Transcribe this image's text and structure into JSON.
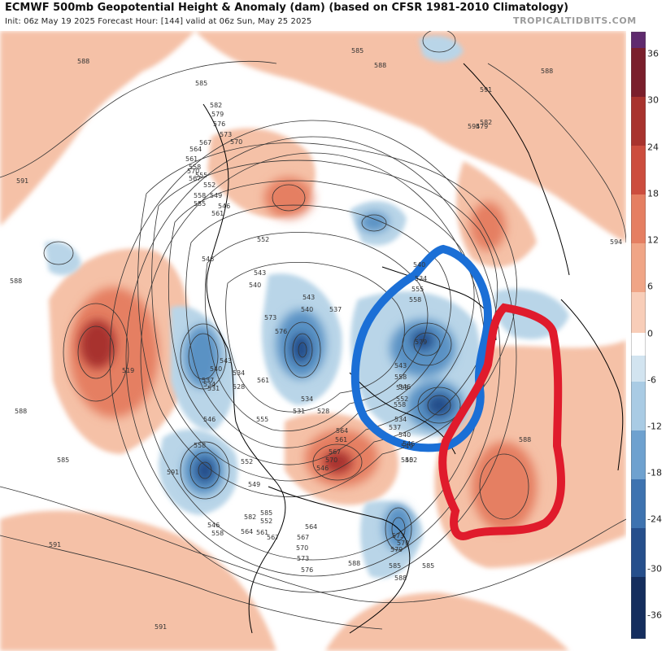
{
  "header": {
    "title": "ECMWF 500mb Geopotential Height & Anomaly (dam) (based on CFSR 1981-2010 Climatology)",
    "subtitle": "Init: 06z May 19 2025   Forecast Hour: [144]   valid at 06z Sun, May 25 2025",
    "credit": "TROPICALTIDBITS.COM"
  },
  "colors": {
    "anomaly_strong_positive": "#a8332e",
    "anomaly_positive": "#e57f62",
    "anomaly_weak_positive": "#f5c1a7",
    "anomaly_weak_negative": "#b9d5e8",
    "anomaly_negative": "#5a92c4",
    "anomaly_strong_negative": "#244d8a",
    "contour": "#333333",
    "annotation_blue": "#1b6fd6",
    "annotation_red": "#e01b2c"
  },
  "colorbar": {
    "ticks": [
      "36",
      "30",
      "24",
      "18",
      "12",
      "6",
      "0",
      "-6",
      "-12",
      "-18",
      "-24",
      "-30",
      "-36"
    ]
  },
  "map": {
    "labels": [
      "588",
      "585",
      "582",
      "579",
      "576",
      "573",
      "570",
      "567",
      "564",
      "561",
      "558",
      "555",
      "552",
      "549",
      "546",
      "543",
      "540",
      "537",
      "534",
      "531",
      "528",
      "519",
      "591",
      "594",
      "588",
      "585",
      "591",
      "588",
      "591",
      "588",
      "585",
      "588",
      "591",
      "591",
      "594",
      "570",
      "567",
      "561",
      "558",
      "555",
      "552",
      "546",
      "543",
      "540",
      "537",
      "534",
      "531",
      "546",
      "558",
      "561",
      "555",
      "552",
      "549",
      "546",
      "543",
      "540",
      "534",
      "528",
      "573",
      "576",
      "579",
      "582",
      "585",
      "558",
      "564",
      "567",
      "570",
      "573",
      "579",
      "585",
      "588",
      "588",
      "585",
      "582",
      "579",
      "576",
      "573",
      "570",
      "567",
      "564",
      "561",
      "552",
      "540",
      "534",
      "555",
      "558",
      "561",
      "564",
      "567",
      "570",
      "546",
      "540",
      "549",
      "552",
      "555",
      "558",
      "543",
      "546",
      "558",
      "537",
      "534",
      "540",
      "546",
      "552",
      "588"
    ],
    "annotations": [
      "blue-trough-circle",
      "red-ridge-circle"
    ]
  }
}
